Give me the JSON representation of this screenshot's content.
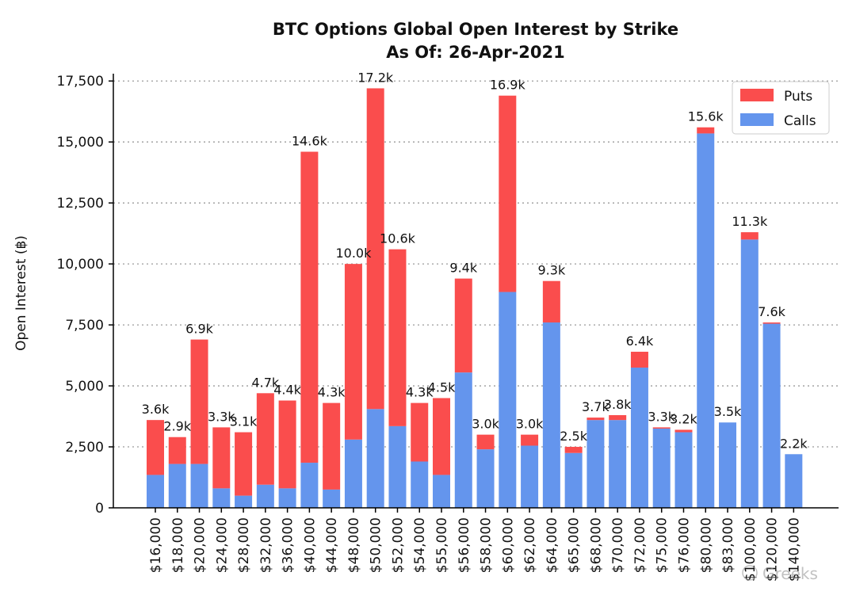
{
  "chart_data": {
    "type": "bar",
    "stacked": true,
    "title": "BTC Options Global Open Interest by Strike",
    "subtitle": "As Of: 26-Apr-2021",
    "xlabel": "",
    "ylabel": "Open Interest (฿)",
    "ylim": [
      0,
      17800
    ],
    "yticks": [
      0,
      2500,
      5000,
      7500,
      10000,
      12500,
      15000,
      17500
    ],
    "ytick_labels": [
      "0",
      "2,500",
      "5,000",
      "7,500",
      "10,000",
      "12,500",
      "15,000",
      "17,500"
    ],
    "grid": "horizontal-dotted",
    "legend_position": "top-right",
    "categories": [
      "$16,000",
      "$18,000",
      "$20,000",
      "$24,000",
      "$28,000",
      "$32,000",
      "$36,000",
      "$40,000",
      "$44,000",
      "$48,000",
      "$50,000",
      "$52,000",
      "$54,000",
      "$55,000",
      "$56,000",
      "$58,000",
      "$60,000",
      "$62,000",
      "$64,000",
      "$65,000",
      "$68,000",
      "$70,000",
      "$72,000",
      "$75,000",
      "$76,000",
      "$80,000",
      "$83,000",
      "$100,000",
      "$120,000",
      "$140,000"
    ],
    "series": [
      {
        "name": "Calls",
        "color": "#6495ed",
        "values": [
          1350,
          1800,
          1800,
          800,
          500,
          950,
          800,
          1850,
          750,
          2800,
          4050,
          3350,
          1900,
          1350,
          5550,
          2400,
          8850,
          2550,
          7600,
          2250,
          3600,
          3600,
          5750,
          3250,
          3100,
          15350,
          3500,
          11000,
          7550,
          2200
        ]
      },
      {
        "name": "Puts",
        "color": "#fa4d4d",
        "values": [
          2250,
          1100,
          5100,
          2500,
          2600,
          3750,
          3600,
          12750,
          3550,
          7200,
          13150,
          7250,
          2400,
          3150,
          3850,
          600,
          8050,
          450,
          1700,
          250,
          100,
          200,
          650,
          50,
          100,
          250,
          0,
          300,
          50,
          0
        ]
      }
    ],
    "total_labels": [
      "3.6k",
      "2.9k",
      "6.9k",
      "3.3k",
      "3.1k",
      "4.7k",
      "4.4k",
      "14.6k",
      "4.3k",
      "10.0k",
      "17.2k",
      "10.6k",
      "4.3k",
      "4.5k",
      "9.4k",
      "3.0k",
      "16.9k",
      "3.0k",
      "9.3k",
      "2.5k",
      "3.7k",
      "3.8k",
      "6.4k",
      "3.3k",
      "3.2k",
      "15.6k",
      "3.5k",
      "11.3k",
      "7.6k",
      "2.2k"
    ]
  },
  "watermark": "Greeks"
}
